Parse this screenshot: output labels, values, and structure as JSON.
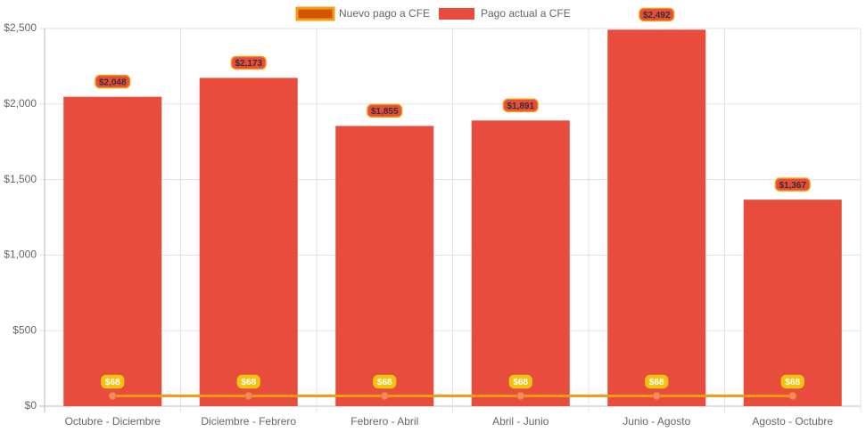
{
  "chart_data": {
    "type": "bar",
    "categories": [
      "Octubre - Diciembre",
      "Diciembre - Febrero",
      "Febrero - Abril",
      "Abril - Junio",
      "Junio - Agosto",
      "Agosto - Octubre"
    ],
    "series": [
      {
        "name": "Nuevo pago a CFE",
        "type": "line",
        "color": "#f39c12",
        "values": [
          68,
          68,
          68,
          68,
          68,
          68
        ],
        "value_labels": [
          "$68",
          "$68",
          "$68",
          "$68",
          "$68",
          "$68"
        ]
      },
      {
        "name": "Pago actual a CFE",
        "type": "bar",
        "color": "#e74c3c",
        "values": [
          2048,
          2173,
          1855,
          1891,
          2492,
          1367
        ],
        "value_labels": [
          "$2,048",
          "$2,173",
          "$1,855",
          "$1,891",
          "$2,492",
          "$1,367"
        ]
      }
    ],
    "ylim": [
      0,
      2500
    ],
    "yticks": [
      {
        "value": 0,
        "label": "$0"
      },
      {
        "value": 500,
        "label": "$500"
      },
      {
        "value": 1000,
        "label": "$1,000"
      },
      {
        "value": 1500,
        "label": "$1,500"
      },
      {
        "value": 2000,
        "label": "$2,000"
      },
      {
        "value": 2500,
        "label": "$2,500"
      }
    ],
    "grid": true,
    "legend": "top"
  }
}
